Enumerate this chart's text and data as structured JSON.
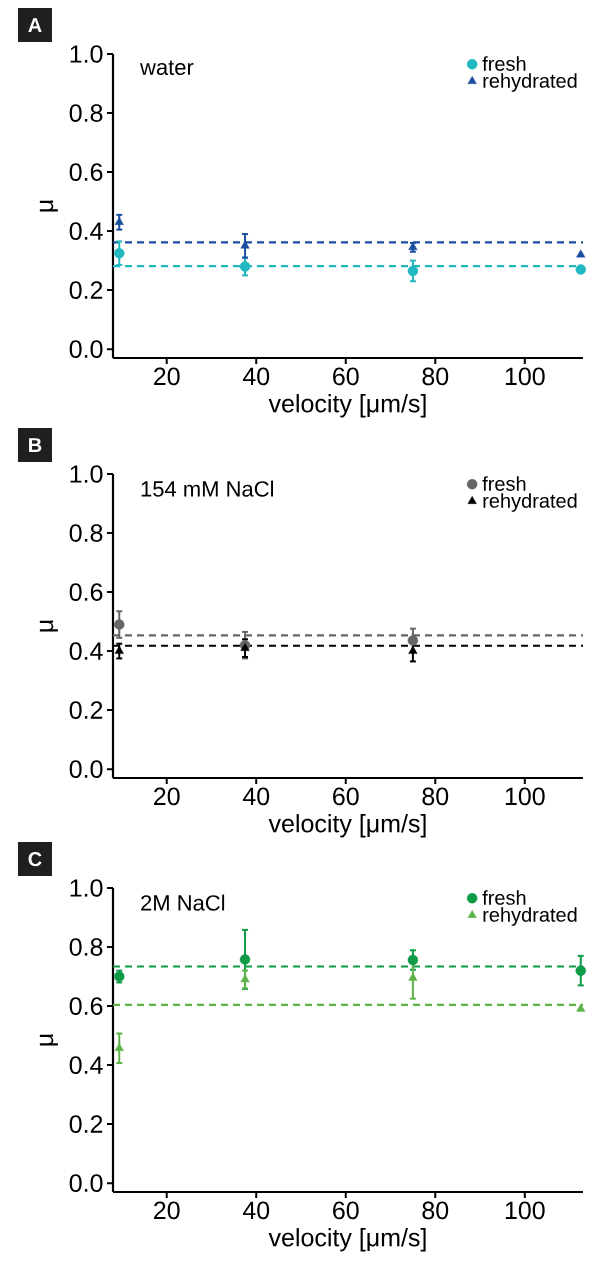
{
  "chart_data": [
    {
      "type": "scatter",
      "title": "A",
      "subtitle": "water",
      "xlabel": "velocity [μm/s]",
      "ylabel": "μ",
      "x": [
        9.4,
        37.5,
        75,
        112.5
      ],
      "series": [
        {
          "name": "fresh",
          "color": "#22b8c0",
          "marker": "circle",
          "values": [
            0.325,
            0.28,
            0.265,
            0.27
          ],
          "errors": [
            0.04,
            0.03,
            0.035,
            null
          ]
        },
        {
          "name": "rehydrated",
          "color": "#1a4ea0",
          "marker": "triangle",
          "values": [
            0.43,
            0.35,
            0.345,
            0.32
          ],
          "errors": [
            0.025,
            0.04,
            0.015,
            null
          ]
        }
      ],
      "ref_lines": [
        {
          "axis": "y",
          "value": 0.281,
          "color": "#22b8c0",
          "line_style": "dashed"
        },
        {
          "axis": "y",
          "value": 0.362,
          "color": "#1a4ea0",
          "line_style": "dashed"
        }
      ],
      "xlim": [
        8,
        113
      ],
      "ylim": [
        -0.03,
        1.0
      ],
      "xticks": [
        20,
        40,
        60,
        80,
        100
      ],
      "yticks": [
        {
          "value": 0,
          "label": "0.0"
        },
        {
          "value": 0.2,
          "label": "0.2"
        },
        {
          "value": 0.4,
          "label": "0.4"
        },
        {
          "value": 0.6,
          "label": "0.6"
        },
        {
          "value": 0.8,
          "label": "0.8"
        },
        {
          "value": 1.0,
          "label": "1.0"
        }
      ],
      "legend": "top right",
      "grid": false
    },
    {
      "type": "scatter",
      "title": "B",
      "subtitle": "154 mM NaCl",
      "xlabel": "velocity [μm/s]",
      "ylabel": "μ",
      "x": [
        9.4,
        37.5,
        75
      ],
      "series": [
        {
          "name": "fresh",
          "color": "#666666",
          "marker": "circle",
          "values": [
            0.49,
            0.42,
            0.436
          ],
          "errors": [
            0.045,
            0.045,
            0.04
          ]
        },
        {
          "name": "rehydrated",
          "color": "#000000",
          "marker": "triangle",
          "values": [
            0.4,
            0.41,
            0.4
          ],
          "errors": [
            0.025,
            0.03,
            0.035
          ]
        }
      ],
      "ref_lines": [
        {
          "axis": "y",
          "value": 0.453,
          "color": "#666666",
          "line_style": "dashed"
        },
        {
          "axis": "y",
          "value": 0.418,
          "color": "#000000",
          "line_style": "dashed"
        }
      ],
      "xlim": [
        8,
        113
      ],
      "ylim": [
        -0.03,
        1.0
      ],
      "xticks": [
        20,
        40,
        60,
        80,
        100
      ],
      "yticks": [
        {
          "value": 0,
          "label": "0.0"
        },
        {
          "value": 0.2,
          "label": "0.2"
        },
        {
          "value": 0.4,
          "label": "0.4"
        },
        {
          "value": 0.6,
          "label": "0.6"
        },
        {
          "value": 0.8,
          "label": "0.8"
        },
        {
          "value": 1.0,
          "label": "1.0"
        }
      ],
      "legend": "top right",
      "grid": false
    },
    {
      "type": "scatter",
      "title": "C",
      "subtitle": "2M NaCl",
      "xlabel": "velocity [μm/s]",
      "ylabel": "μ",
      "x": [
        9.4,
        37.5,
        75,
        112.5
      ],
      "series": [
        {
          "name": "fresh",
          "color": "#0f9a48",
          "marker": "circle",
          "values": [
            0.7,
            0.758,
            0.756,
            0.72
          ],
          "errors": [
            0.02,
            0.1,
            0.033,
            0.05
          ]
        },
        {
          "name": "rehydrated",
          "color": "#5db348",
          "marker": "triangle",
          "values": [
            0.457,
            0.69,
            0.695,
            0.59
          ],
          "errors": [
            0.05,
            0.03,
            0.07,
            null
          ]
        }
      ],
      "ref_lines": [
        {
          "axis": "y",
          "value": 0.734,
          "color": "#0f9a48",
          "line_style": "dashed"
        },
        {
          "axis": "y",
          "value": 0.604,
          "color": "#5db348",
          "line_style": "dashed"
        }
      ],
      "xlim": [
        8,
        113
      ],
      "ylim": [
        -0.03,
        1.0
      ],
      "xticks": [
        20,
        40,
        60,
        80,
        100
      ],
      "yticks": [
        {
          "value": 0,
          "label": "0.0"
        },
        {
          "value": 0.2,
          "label": "0.2"
        },
        {
          "value": 0.4,
          "label": "0.4"
        },
        {
          "value": 0.6,
          "label": "0.6"
        },
        {
          "value": 0.8,
          "label": "0.8"
        },
        {
          "value": 1.0,
          "label": "1.0"
        }
      ],
      "legend": "top right",
      "grid": false
    }
  ]
}
